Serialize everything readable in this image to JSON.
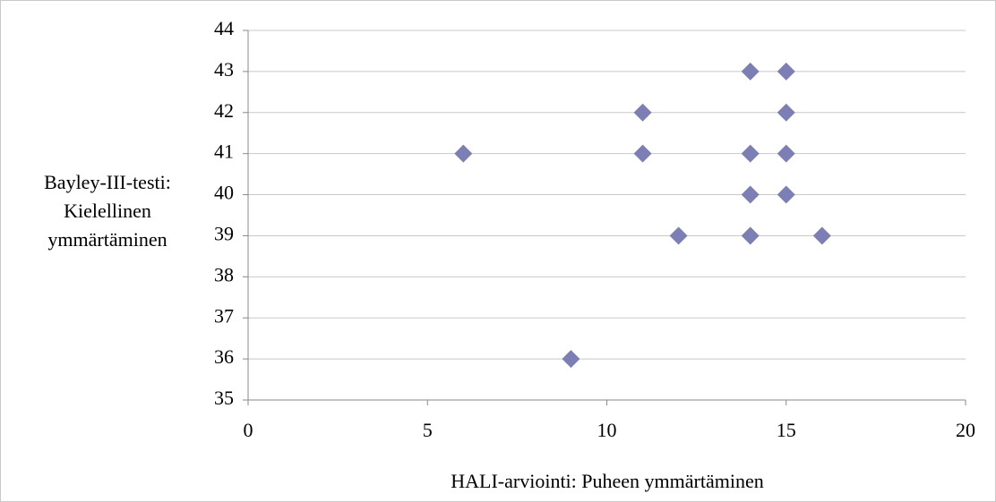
{
  "chart_data": {
    "type": "scatter",
    "xlabel": "HALI-arviointi: Puheen ymmärtäminen",
    "ylabel": [
      "Bayley-III-testi:",
      "Kielellinen",
      "ymmärtäminen"
    ],
    "series": [
      {
        "color": "#7c7fb6",
        "x": [
          14,
          15,
          11,
          15,
          6,
          11,
          14,
          15,
          14,
          15,
          12,
          14,
          16,
          9
        ],
        "values": [
          43,
          43,
          42,
          42,
          41,
          41,
          41,
          41,
          40,
          40,
          39,
          39,
          39,
          36
        ]
      }
    ],
    "xlim": [
      0,
      20
    ],
    "xticks": [
      0,
      5,
      10,
      15,
      20
    ],
    "ylim": [
      35,
      44
    ],
    "yticks": [
      35,
      36,
      37,
      38,
      39,
      40,
      41,
      42,
      43,
      44
    ],
    "grid": true
  }
}
